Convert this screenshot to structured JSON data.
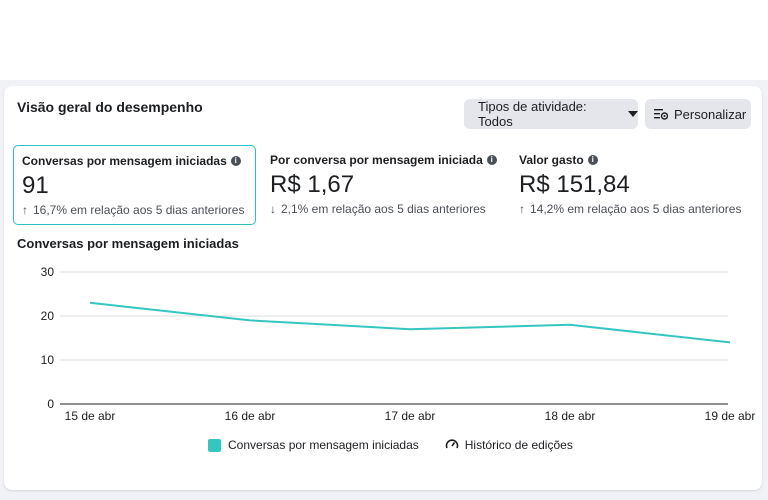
{
  "header": {
    "title": "Visão geral do desempenho",
    "activity_button": "Tipos de atividade: Todos",
    "customize_button": "Personalizar"
  },
  "metrics": [
    {
      "label": "Conversas por mensagem iniciadas",
      "value": "91",
      "delta": "16,7% em relação aos 5 dias anteriores",
      "direction": "up",
      "selected": true
    },
    {
      "label": "Por conversa por mensagem iniciada",
      "value": "R$ 1,67",
      "delta": "2,1% em relação aos 5 dias anteriores",
      "direction": "down",
      "selected": false
    },
    {
      "label": "Valor gasto",
      "value": "R$ 151,84",
      "delta": "14,2% em relação aos 5 dias anteriores",
      "direction": "up",
      "selected": false
    }
  ],
  "chart_title": "Conversas por mensagem iniciadas",
  "chart_data": {
    "type": "line",
    "x": [
      "15 de abr",
      "16 de abr",
      "17 de abr",
      "18 de abr",
      "19 de abr"
    ],
    "series": [
      {
        "name": "Conversas por mensagem iniciadas",
        "values": [
          23,
          19,
          17,
          18,
          14
        ],
        "color": "#36c6c2"
      }
    ],
    "ylim": [
      0,
      30
    ],
    "yticks": [
      0,
      10,
      20,
      30
    ],
    "grid": true
  },
  "legend": {
    "series_label": "Conversas por mensagem iniciadas",
    "history_label": "Histórico de edições"
  },
  "colors": {
    "accent": "#36c6c2",
    "selected_border": "#27c2c4"
  }
}
